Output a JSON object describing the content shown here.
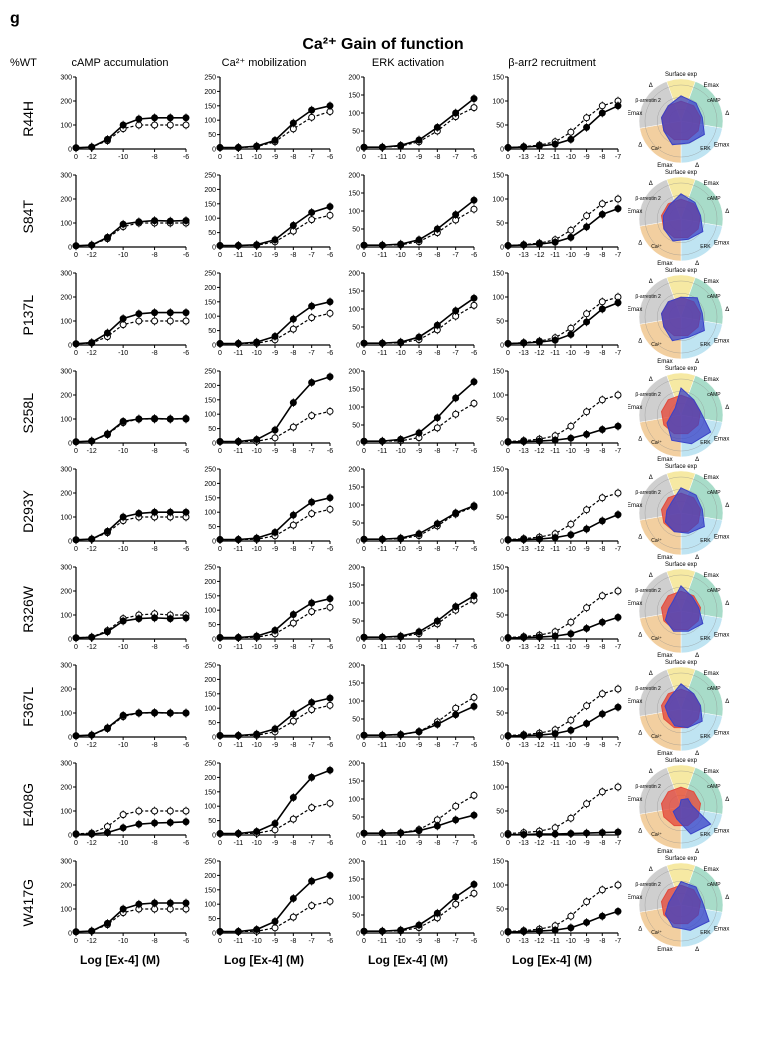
{
  "panel_letter": "g",
  "main_title": "Ca²⁺ Gain of function",
  "pct_wt_label": "%WT",
  "column_headers": [
    "cAMP accumulation",
    "Ca²⁺ mobilization",
    "ERK activation",
    "β-arr2 recruitment"
  ],
  "x_axis_label": "Log [Ex-4] (M)",
  "mutants": [
    "R44H",
    "S84T",
    "P137L",
    "S258L",
    "D293Y",
    "R326W",
    "F367L",
    "E408G",
    "W417G"
  ],
  "chart_style": {
    "line_color_solid": "#000000",
    "line_color_dashed": "#000000",
    "marker_fill_solid": "#000000",
    "marker_fill_dashed": "#ffffff",
    "marker_stroke": "#000000",
    "marker_radius": 3,
    "line_width_solid": 1.6,
    "line_width_dashed": 1.2,
    "dash_pattern": "3,2",
    "axis_color": "#000000",
    "axis_width": 1.2,
    "tick_len": 3,
    "tick_fontsize": 7
  },
  "assays": {
    "cAMP": {
      "ylim": [
        0,
        300
      ],
      "ystep": 100,
      "xticks": [
        0,
        -12,
        -10,
        -8,
        -6
      ],
      "xvals": [
        -13,
        -12,
        -11,
        -10,
        -9,
        -8,
        -7,
        -6
      ]
    },
    "Ca": {
      "ylim": [
        0,
        250
      ],
      "ystep": 50,
      "xticks": [
        0,
        -11,
        -10,
        -9,
        -8,
        -7,
        -6
      ],
      "xvals": [
        -12,
        -11,
        -10,
        -9,
        -8,
        -7,
        -6
      ]
    },
    "ERK": {
      "ylim": [
        0,
        200
      ],
      "ystep": 50,
      "xticks": [
        0,
        -11,
        -10,
        -9,
        -8,
        -7,
        -6
      ],
      "xvals": [
        -12,
        -11,
        -10,
        -9,
        -8,
        -7,
        -6
      ]
    },
    "barr": {
      "ylim": [
        0,
        150
      ],
      "ystep": 50,
      "xticks": [
        0,
        -13,
        -12,
        -11,
        -10,
        -9,
        -8,
        -7
      ],
      "xvals": [
        -14,
        -13,
        -12,
        -11,
        -10,
        -9,
        -8,
        -7
      ]
    }
  },
  "data": {
    "R44H": {
      "cAMP": {
        "solid": [
          5,
          8,
          40,
          100,
          125,
          130,
          130,
          130
        ],
        "dashed": [
          5,
          8,
          35,
          85,
          100,
          100,
          100,
          100
        ]
      },
      "Ca": {
        "solid": [
          5,
          5,
          10,
          30,
          90,
          135,
          150
        ],
        "dashed": [
          5,
          5,
          8,
          25,
          70,
          110,
          130
        ]
      },
      "ERK": {
        "solid": [
          5,
          5,
          10,
          25,
          60,
          100,
          140
        ],
        "dashed": [
          5,
          5,
          8,
          20,
          50,
          90,
          115
        ]
      },
      "barr": {
        "solid": [
          3,
          4,
          6,
          10,
          20,
          45,
          75,
          90
        ],
        "dashed": [
          3,
          5,
          8,
          15,
          35,
          65,
          90,
          100
        ]
      }
    },
    "S84T": {
      "cAMP": {
        "solid": [
          5,
          8,
          40,
          95,
          105,
          110,
          108,
          110
        ],
        "dashed": [
          5,
          8,
          35,
          85,
          100,
          100,
          100,
          100
        ]
      },
      "Ca": {
        "solid": [
          5,
          5,
          8,
          25,
          75,
          120,
          140
        ],
        "dashed": [
          5,
          5,
          6,
          18,
          55,
          95,
          110
        ]
      },
      "ERK": {
        "solid": [
          5,
          5,
          8,
          20,
          50,
          90,
          130
        ],
        "dashed": [
          5,
          5,
          6,
          15,
          40,
          75,
          105
        ]
      },
      "barr": {
        "solid": [
          3,
          4,
          6,
          10,
          20,
          42,
          68,
          80
        ],
        "dashed": [
          3,
          5,
          8,
          15,
          35,
          65,
          90,
          100
        ]
      }
    },
    "P137L": {
      "cAMP": {
        "solid": [
          5,
          10,
          50,
          110,
          130,
          135,
          135,
          135
        ],
        "dashed": [
          5,
          8,
          35,
          85,
          100,
          100,
          100,
          100
        ]
      },
      "Ca": {
        "solid": [
          5,
          5,
          10,
          30,
          90,
          135,
          150
        ],
        "dashed": [
          5,
          5,
          6,
          18,
          55,
          95,
          110
        ]
      },
      "ERK": {
        "solid": [
          5,
          5,
          8,
          22,
          55,
          95,
          130
        ],
        "dashed": [
          5,
          5,
          6,
          15,
          42,
          80,
          110
        ]
      },
      "barr": {
        "solid": [
          3,
          4,
          6,
          10,
          22,
          48,
          75,
          88
        ],
        "dashed": [
          3,
          5,
          8,
          15,
          35,
          65,
          90,
          100
        ]
      }
    },
    "S258L": {
      "cAMP": {
        "solid": [
          5,
          8,
          38,
          90,
          100,
          102,
          100,
          102
        ],
        "dashed": [
          5,
          8,
          35,
          85,
          100,
          100,
          100,
          100
        ]
      },
      "Ca": {
        "solid": [
          5,
          5,
          12,
          45,
          140,
          210,
          230
        ],
        "dashed": [
          5,
          5,
          6,
          18,
          55,
          95,
          110
        ]
      },
      "ERK": {
        "solid": [
          5,
          5,
          10,
          28,
          70,
          125,
          170
        ],
        "dashed": [
          5,
          5,
          6,
          15,
          42,
          80,
          110
        ]
      },
      "barr": {
        "solid": [
          2,
          3,
          4,
          6,
          10,
          18,
          28,
          35
        ],
        "dashed": [
          3,
          5,
          8,
          15,
          35,
          65,
          90,
          100
        ]
      }
    },
    "D293Y": {
      "cAMP": {
        "solid": [
          5,
          8,
          40,
          100,
          115,
          120,
          120,
          120
        ],
        "dashed": [
          5,
          8,
          35,
          85,
          100,
          100,
          100,
          100
        ]
      },
      "Ca": {
        "solid": [
          5,
          5,
          10,
          30,
          90,
          135,
          150
        ],
        "dashed": [
          5,
          5,
          6,
          18,
          55,
          95,
          110
        ]
      },
      "ERK": {
        "solid": [
          5,
          5,
          8,
          20,
          48,
          78,
          98
        ],
        "dashed": [
          5,
          5,
          6,
          15,
          42,
          75,
          95
        ]
      },
      "barr": {
        "solid": [
          2,
          3,
          4,
          7,
          13,
          25,
          42,
          55
        ],
        "dashed": [
          3,
          5,
          8,
          15,
          35,
          65,
          90,
          100
        ]
      }
    },
    "R326W": {
      "cAMP": {
        "solid": [
          5,
          7,
          30,
          75,
          85,
          88,
          85,
          88
        ],
        "dashed": [
          5,
          8,
          35,
          85,
          100,
          105,
          100,
          100
        ]
      },
      "Ca": {
        "solid": [
          5,
          5,
          10,
          30,
          85,
          125,
          140
        ],
        "dashed": [
          5,
          5,
          6,
          18,
          55,
          95,
          110
        ]
      },
      "ERK": {
        "solid": [
          5,
          5,
          8,
          20,
          50,
          90,
          120
        ],
        "dashed": [
          5,
          5,
          6,
          15,
          42,
          80,
          108
        ]
      },
      "barr": {
        "solid": [
          2,
          3,
          4,
          6,
          11,
          22,
          35,
          45
        ],
        "dashed": [
          3,
          5,
          8,
          15,
          35,
          65,
          90,
          100
        ]
      }
    },
    "F367L": {
      "cAMP": {
        "solid": [
          5,
          8,
          38,
          90,
          100,
          102,
          100,
          100
        ],
        "dashed": [
          5,
          8,
          35,
          85,
          100,
          100,
          100,
          100
        ]
      },
      "Ca": {
        "solid": [
          5,
          5,
          10,
          28,
          80,
          120,
          135
        ],
        "dashed": [
          5,
          5,
          6,
          18,
          55,
          95,
          110
        ]
      },
      "ERK": {
        "solid": [
          5,
          5,
          7,
          15,
          35,
          62,
          85
        ],
        "dashed": [
          5,
          5,
          6,
          15,
          42,
          80,
          110
        ]
      },
      "barr": {
        "solid": [
          2,
          3,
          4,
          7,
          14,
          28,
          48,
          62
        ],
        "dashed": [
          3,
          5,
          8,
          15,
          35,
          65,
          90,
          100
        ]
      }
    },
    "E408G": {
      "cAMP": {
        "solid": [
          3,
          4,
          10,
          30,
          45,
          50,
          52,
          55
        ],
        "dashed": [
          5,
          8,
          35,
          85,
          100,
          100,
          100,
          100
        ]
      },
      "Ca": {
        "solid": [
          5,
          5,
          12,
          40,
          130,
          200,
          225
        ],
        "dashed": [
          5,
          5,
          6,
          18,
          55,
          95,
          110
        ]
      },
      "ERK": {
        "solid": [
          5,
          5,
          6,
          12,
          25,
          42,
          55
        ],
        "dashed": [
          5,
          5,
          6,
          15,
          42,
          80,
          110
        ]
      },
      "barr": {
        "solid": [
          1,
          1,
          2,
          2,
          3,
          4,
          5,
          6
        ],
        "dashed": [
          3,
          5,
          8,
          15,
          35,
          65,
          90,
          100
        ]
      }
    },
    "W417G": {
      "cAMP": {
        "solid": [
          5,
          8,
          40,
          100,
          120,
          125,
          125,
          125
        ],
        "dashed": [
          5,
          8,
          35,
          85,
          100,
          100,
          100,
          100
        ]
      },
      "Ca": {
        "solid": [
          5,
          5,
          12,
          40,
          120,
          180,
          200
        ],
        "dashed": [
          5,
          5,
          6,
          18,
          55,
          95,
          110
        ]
      },
      "ERK": {
        "solid": [
          5,
          5,
          8,
          22,
          55,
          100,
          135
        ],
        "dashed": [
          5,
          5,
          6,
          15,
          42,
          80,
          110
        ]
      },
      "barr": {
        "solid": [
          2,
          3,
          4,
          6,
          11,
          22,
          35,
          45
        ],
        "dashed": [
          3,
          5,
          8,
          15,
          35,
          65,
          90,
          100
        ]
      }
    }
  },
  "radar": {
    "sector_colors": [
      "#f6e9a3",
      "#a8dcc9",
      "#bfe4f2",
      "#f2cfa0",
      "#cfcfcf"
    ],
    "fill_color": "#3a42c7",
    "ref_color": "#e34b3d",
    "axis_labels": [
      "Surface exp",
      "Emax",
      "Δ",
      "Emax",
      "Δ",
      "Emax",
      "Δ",
      "Emax",
      "Δ"
    ],
    "sector_labels": [
      "",
      "cAMP",
      "ERK",
      "Ca²⁺",
      "β-arrestin 2"
    ],
    "label_fontsize": 6,
    "data": {
      "R44H": [
        0.7,
        0.65,
        0.6,
        0.75,
        0.65,
        0.7,
        0.55,
        0.55,
        0.55
      ],
      "S84T": [
        0.7,
        0.6,
        0.55,
        0.7,
        0.6,
        0.65,
        0.55,
        0.5,
        0.5
      ],
      "P137L": [
        0.55,
        0.7,
        0.6,
        0.75,
        0.6,
        0.7,
        0.55,
        0.55,
        0.55
      ],
      "S258L": [
        0.75,
        0.55,
        0.55,
        0.95,
        0.85,
        0.75,
        0.45,
        0.25,
        0.25
      ],
      "D293Y": [
        0.7,
        0.65,
        0.6,
        0.75,
        0.6,
        0.55,
        0.5,
        0.4,
        0.4
      ],
      "R326W": [
        0.7,
        0.5,
        0.5,
        0.7,
        0.6,
        0.6,
        0.5,
        0.35,
        0.35
      ],
      "F367L": [
        0.7,
        0.55,
        0.55,
        0.68,
        0.55,
        0.5,
        0.4,
        0.45,
        0.45
      ],
      "E408G": [
        0.2,
        0.3,
        0.3,
        0.95,
        0.8,
        0.35,
        0.25,
        0.05,
        0.05
      ],
      "W417G": [
        0.65,
        0.65,
        0.6,
        0.9,
        0.75,
        0.65,
        0.5,
        0.35,
        0.35
      ]
    }
  }
}
